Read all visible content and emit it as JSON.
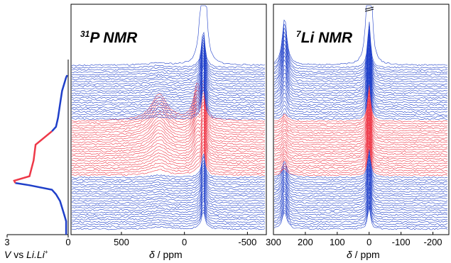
{
  "chart_data": [
    {
      "type": "line",
      "panel": "voltage",
      "xlabel_parts": [
        "V",
        " vs ",
        "Li.Li",
        "+"
      ],
      "xlim": [
        3,
        0
      ],
      "xticks": [
        3,
        0
      ],
      "profile": {
        "voltage": [
          0.1,
          0.1,
          0.1,
          0.2,
          0.3,
          0.4,
          0.6,
          0.8,
          1.9,
          2.6,
          2.65,
          1.9,
          1.7,
          1.6,
          0.8,
          0.6,
          0.5,
          0.4,
          0.3,
          0.1,
          0.05
        ],
        "scan": [
          0,
          3,
          6,
          9,
          12,
          15,
          18,
          20,
          22,
          23,
          24,
          26,
          33,
          40,
          46,
          48,
          52,
          58,
          64,
          70,
          71
        ],
        "segments": [
          {
            "from": 0,
            "to": 23,
            "color": "blue"
          },
          {
            "from": 23,
            "to": 46,
            "color": "red"
          },
          {
            "from": 46,
            "to": 71,
            "color": "blue"
          }
        ]
      },
      "colors": {
        "blue": "#1f3fc9",
        "red": "#ee3848"
      }
    },
    {
      "type": "line",
      "panel": "31P",
      "title_sup": "31",
      "title_main": "P NMR",
      "xlabel_parts": [
        "δ",
        " / ppm"
      ],
      "xlim": [
        900,
        -650
      ],
      "xticks": [
        500,
        0,
        -500
      ],
      "spectra_count": 71,
      "blocks": [
        {
          "color": "blue",
          "scans": [
            0,
            22
          ]
        },
        {
          "color": "red",
          "scans": [
            23,
            46
          ]
        },
        {
          "color": "blue",
          "scans": [
            47,
            70
          ]
        }
      ],
      "main_peak_ppm": -150,
      "side_peak_ppm": [
        200,
        -100
      ]
    },
    {
      "type": "line",
      "panel": "7Li",
      "title_sup": "7",
      "title_main": "Li NMR",
      "xlabel_parts": [
        "δ",
        " / ppm"
      ],
      "xlim": [
        300,
        -250
      ],
      "xticks": [
        300,
        200,
        100,
        0,
        -100,
        -200
      ],
      "spectra_count": 71,
      "blocks": [
        {
          "color": "blue",
          "scans": [
            0,
            22
          ]
        },
        {
          "color": "red",
          "scans": [
            23,
            46
          ]
        },
        {
          "color": "blue",
          "scans": [
            47,
            70
          ]
        }
      ],
      "main_peak_ppm": 0,
      "side_peak_ppm": [
        265
      ]
    }
  ]
}
